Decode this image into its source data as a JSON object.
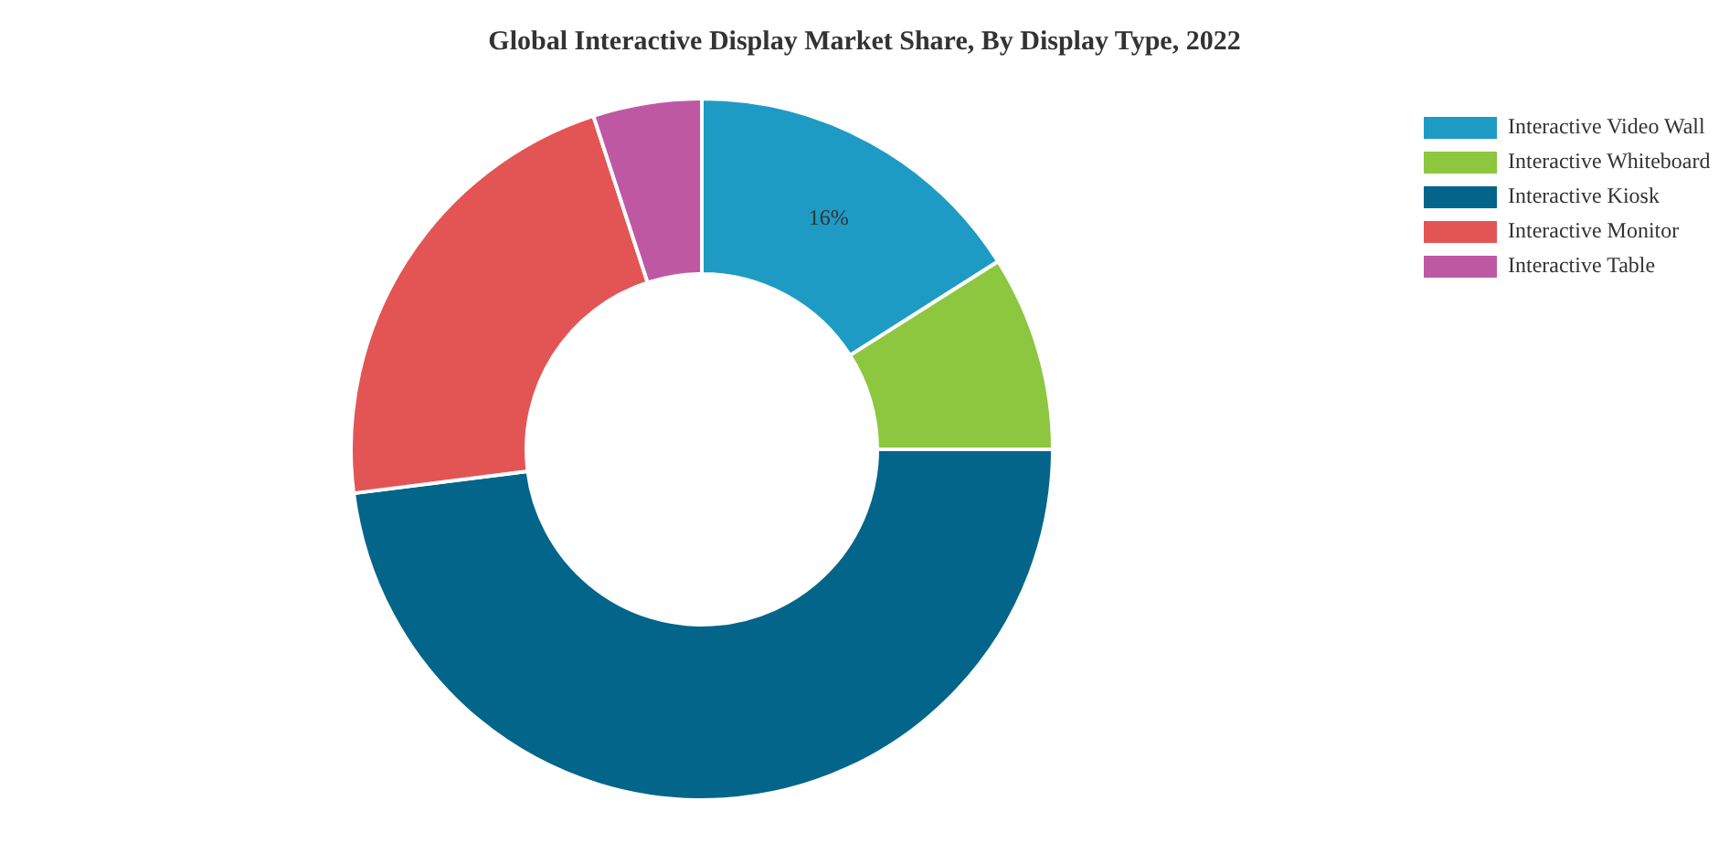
{
  "chart_data": {
    "type": "donut",
    "title": "Global Interactive Display Market Share, By Display Type, 2022",
    "categories": [
      "Interactive Video Wall",
      "Interactive Whiteboard",
      "Interactive Kiosk",
      "Interactive Monitor",
      "Interactive Table"
    ],
    "values": [
      16,
      9,
      48,
      22,
      5
    ],
    "colors": [
      "#1e9bc4",
      "#8dc63f",
      "#03658a",
      "#e35555",
      "#bf58a3"
    ],
    "value_labels": [
      "16%",
      null,
      null,
      null,
      null
    ],
    "legend": "top right"
  }
}
